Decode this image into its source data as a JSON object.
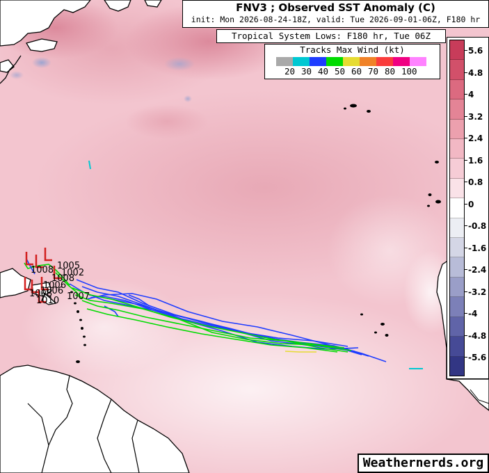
{
  "title": {
    "main": "FNV3 ; Observed SST Anomaly (C)",
    "subtitle": "init: Mon 2026-08-24-18Z, valid: Tue 2026-09-01-06Z, F180 hr"
  },
  "system_box": {
    "text": "Tropical System Lows: F180 hr, Tue 06Z"
  },
  "track_legend": {
    "title": "Tracks Max Wind (kt)",
    "labels": [
      "20",
      "30",
      "40",
      "50",
      "60",
      "70",
      "80",
      "100"
    ],
    "colors": [
      "#a9a9a9",
      "#00c8d2",
      "#1e3cff",
      "#00dc00",
      "#e6dc32",
      "#f08228",
      "#fa3c3c",
      "#f00082",
      "#ff82ff"
    ]
  },
  "colorbar": {
    "labels": [
      "5.6",
      "4.8",
      "4",
      "3.2",
      "2.4",
      "1.6",
      "0.8",
      "0",
      "-0.8",
      "-1.6",
      "-2.4",
      "-3.2",
      "-4",
      "-4.8",
      "-5.6"
    ],
    "colors": [
      "#c83c5a",
      "#d2506a",
      "#dc6a80",
      "#e48496",
      "#eca0ae",
      "#f2b8c4",
      "#f6ccd6",
      "#fae2e8",
      "#ffffff",
      "#eceef4",
      "#d4d6e6",
      "#b8bcd8",
      "#9a9ec8",
      "#7c80b8",
      "#6064a8",
      "#464a96",
      "#323684"
    ]
  },
  "pressure_labels": [
    "1005",
    "1002",
    "1008",
    "1008",
    "1006",
    "1006",
    "1007",
    "1008",
    "1010"
  ],
  "watermark": "Weathernerds.org"
}
